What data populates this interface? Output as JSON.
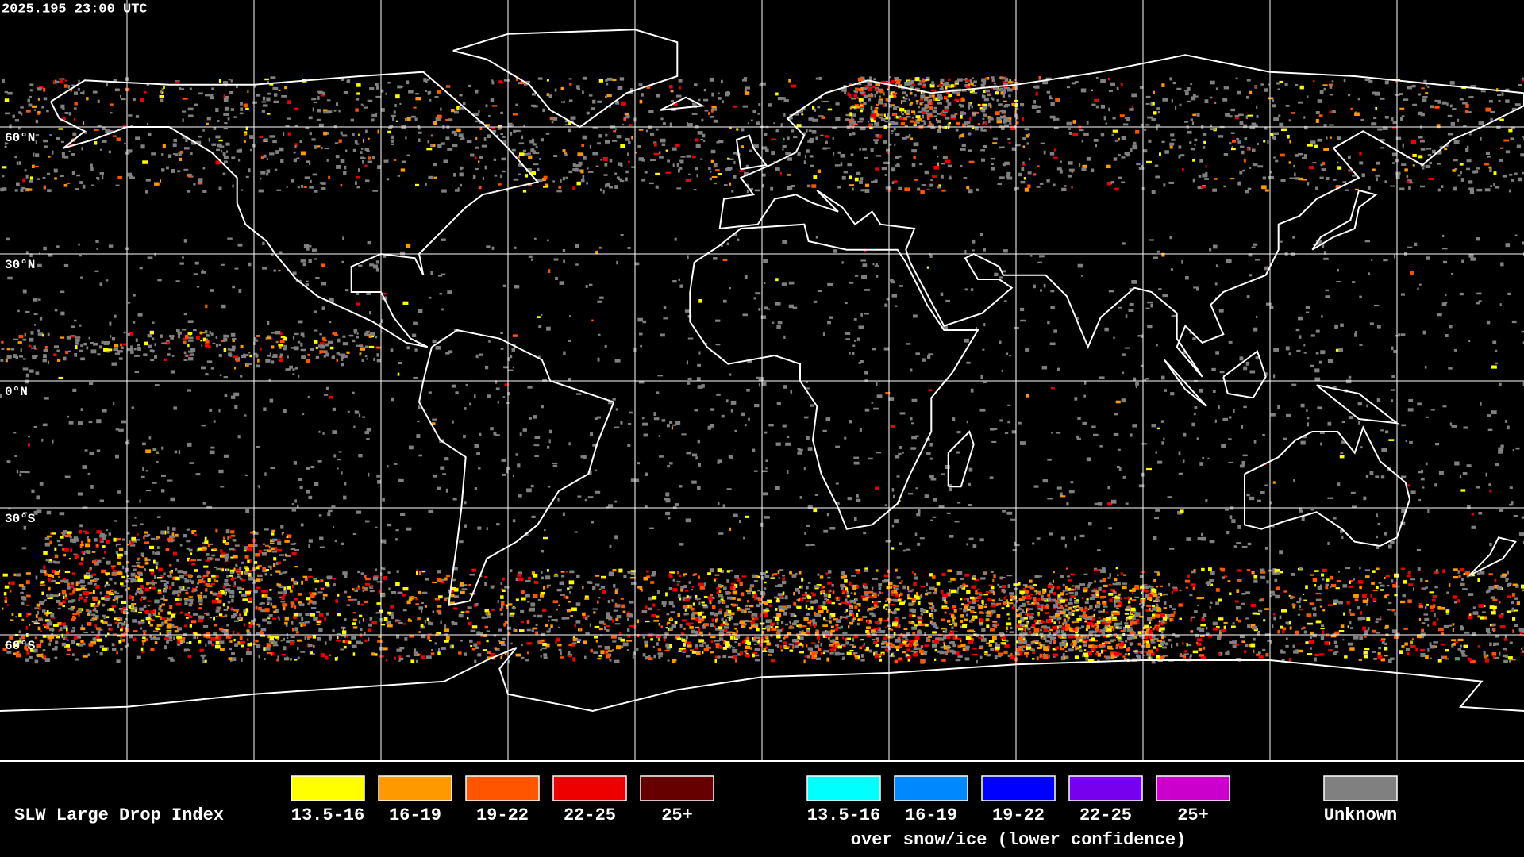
{
  "header": {
    "timestamp": "2025.195 23:00 UTC"
  },
  "map": {
    "lat_labels": [
      "60°N",
      "30°N",
      "0°N",
      "30°S",
      "60°S"
    ]
  },
  "legend": {
    "title": "SLW Large Drop Index",
    "items": [
      {
        "label": "13.5-16",
        "color": "#ffff00"
      },
      {
        "label": "16-19",
        "color": "#ff9900"
      },
      {
        "label": "19-22",
        "color": "#ff5500"
      },
      {
        "label": "22-25",
        "color": "#ee0000"
      },
      {
        "label": "25+",
        "color": "#660000"
      }
    ],
    "snow_items": [
      {
        "label": "13.5-16",
        "color": "#00ffff"
      },
      {
        "label": "16-19",
        "color": "#0088ff"
      },
      {
        "label": "19-22",
        "color": "#0000ff"
      },
      {
        "label": "22-25",
        "color": "#7700ee"
      },
      {
        "label": "25+",
        "color": "#cc00cc"
      }
    ],
    "snow_caption": "over snow/ice (lower confidence)",
    "unknown": {
      "label": "Unknown",
      "color": "#808080"
    }
  }
}
